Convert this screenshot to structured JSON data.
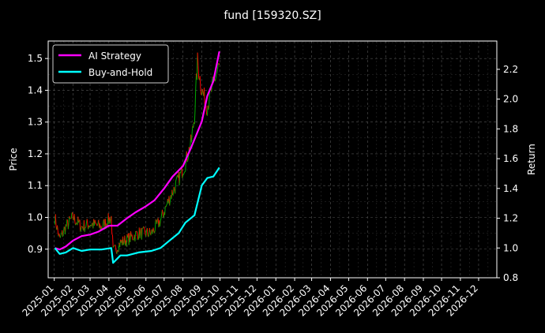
{
  "chart_data": {
    "type": "line",
    "title": "fund [159320.SZ]",
    "left_axis": {
      "label": "Price",
      "ylim": [
        0.81,
        1.555
      ],
      "ticks": [
        "0.9",
        "1.0",
        "1.1",
        "1.2",
        "1.3",
        "1.4",
        "1.5"
      ]
    },
    "right_axis": {
      "label": "Return",
      "ylim": [
        0.8,
        2.39
      ],
      "ticks": [
        "0.8",
        "1.0",
        "1.2",
        "1.4",
        "1.6",
        "1.8",
        "2.0",
        "2.2"
      ]
    },
    "x_axis": {
      "range": [
        "2024-12-22",
        "2026-12-31"
      ],
      "ticks": [
        "2025-01",
        "2025-02",
        "2025-03",
        "2025-04",
        "2025-05",
        "2025-06",
        "2025-07",
        "2025-08",
        "2025-09",
        "2025-10",
        "2025-11",
        "2025-12",
        "2026-01",
        "2026-02",
        "2026-03",
        "2026-04",
        "2026-05",
        "2026-06",
        "2026-07",
        "2026-08",
        "2026-09",
        "2026-10",
        "2026-11",
        "2026-12"
      ]
    },
    "grid": true,
    "legend_position": "top-left",
    "series": [
      {
        "name": "AI Strategy",
        "axis": "right",
        "color": "#ff00ff",
        "points": [
          [
            "2025-01-02",
            1.0
          ],
          [
            "2025-01-10",
            0.99
          ],
          [
            "2025-01-20",
            1.01
          ],
          [
            "2025-02-01",
            1.05
          ],
          [
            "2025-02-15",
            1.08
          ],
          [
            "2025-03-01",
            1.09
          ],
          [
            "2025-03-15",
            1.11
          ],
          [
            "2025-04-01",
            1.15
          ],
          [
            "2025-04-15",
            1.15
          ],
          [
            "2025-05-01",
            1.2
          ],
          [
            "2025-05-15",
            1.24
          ],
          [
            "2025-06-01",
            1.28
          ],
          [
            "2025-06-15",
            1.32
          ],
          [
            "2025-07-01",
            1.4
          ],
          [
            "2025-07-15",
            1.48
          ],
          [
            "2025-08-01",
            1.55
          ],
          [
            "2025-08-15",
            1.68
          ],
          [
            "2025-09-01",
            1.85
          ],
          [
            "2025-09-10",
            2.02
          ],
          [
            "2025-09-20",
            2.12
          ],
          [
            "2025-09-30",
            2.32
          ]
        ]
      },
      {
        "name": "Buy-and-Hold",
        "axis": "right",
        "color": "#00ffff",
        "points": [
          [
            "2025-01-02",
            1.0
          ],
          [
            "2025-01-10",
            0.96
          ],
          [
            "2025-01-20",
            0.97
          ],
          [
            "2025-02-01",
            1.0
          ],
          [
            "2025-02-15",
            0.98
          ],
          [
            "2025-03-01",
            0.99
          ],
          [
            "2025-03-20",
            0.99
          ],
          [
            "2025-04-05",
            1.0
          ],
          [
            "2025-04-08",
            0.9
          ],
          [
            "2025-04-20",
            0.95
          ],
          [
            "2025-05-01",
            0.95
          ],
          [
            "2025-05-20",
            0.97
          ],
          [
            "2025-06-10",
            0.98
          ],
          [
            "2025-06-25",
            1.0
          ],
          [
            "2025-07-10",
            1.05
          ],
          [
            "2025-07-25",
            1.1
          ],
          [
            "2025-08-05",
            1.17
          ],
          [
            "2025-08-20",
            1.22
          ],
          [
            "2025-09-01",
            1.42
          ],
          [
            "2025-09-10",
            1.47
          ],
          [
            "2025-09-20",
            1.48
          ],
          [
            "2025-09-30",
            1.54
          ]
        ]
      }
    ],
    "price_series": {
      "axis": "left",
      "up_color": "#00aa00",
      "down_color": "#ff0000",
      "points": [
        [
          "2025-01-02",
          1.0
        ],
        [
          "2025-01-10",
          0.93
        ],
        [
          "2025-01-20",
          0.97
        ],
        [
          "2025-02-01",
          1.0
        ],
        [
          "2025-02-15",
          0.97
        ],
        [
          "2025-03-01",
          0.98
        ],
        [
          "2025-03-20",
          0.97
        ],
        [
          "2025-04-05",
          1.0
        ],
        [
          "2025-04-08",
          0.89
        ],
        [
          "2025-04-20",
          0.92
        ],
        [
          "2025-05-01",
          0.93
        ],
        [
          "2025-05-20",
          0.95
        ],
        [
          "2025-06-10",
          0.95
        ],
        [
          "2025-06-25",
          0.99
        ],
        [
          "2025-07-10",
          1.06
        ],
        [
          "2025-07-25",
          1.12
        ],
        [
          "2025-08-05",
          1.17
        ],
        [
          "2025-08-15",
          1.24
        ],
        [
          "2025-08-20",
          1.32
        ],
        [
          "2025-08-25",
          1.49
        ],
        [
          "2025-09-01",
          1.4
        ],
        [
          "2025-09-10",
          1.35
        ],
        [
          "2025-09-20",
          1.42
        ],
        [
          "2025-09-30",
          1.48
        ]
      ]
    }
  }
}
